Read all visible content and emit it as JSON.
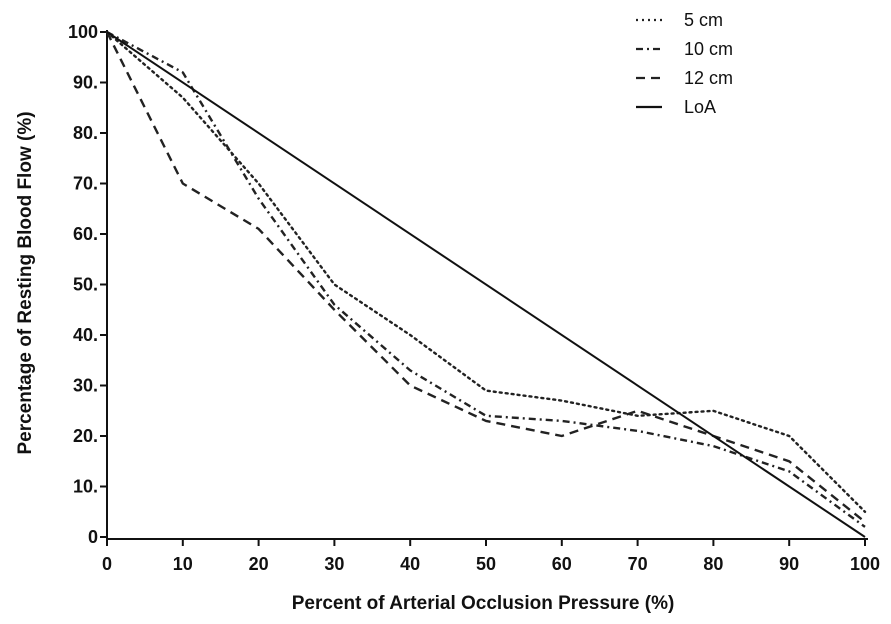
{
  "chart_data": {
    "type": "line",
    "xlabel": "Percent of Arterial  Occlusion Pressure (%)",
    "ylabel": "Percentage of  Resting  Blood Flow (%)",
    "xlim": [
      0,
      100
    ],
    "ylim": [
      0,
      100
    ],
    "x_ticks": [
      "0",
      "10",
      "20",
      "30",
      "40",
      "50",
      "60",
      "70",
      "80",
      "90",
      "100"
    ],
    "y_ticks": [
      "0",
      "10.",
      "20.",
      "30.",
      "40.",
      "50.",
      "60.",
      "70.",
      "80.",
      "90.",
      "100"
    ],
    "grid": false,
    "legend_position": "top-right",
    "series": [
      {
        "name": "5 cm",
        "style": "dotted",
        "color": "#222222",
        "x": [
          0,
          10,
          20,
          30,
          40,
          50,
          60,
          70,
          80,
          90,
          100
        ],
        "y": [
          100,
          87,
          70,
          50,
          40,
          29,
          27,
          24,
          25,
          20,
          5
        ]
      },
      {
        "name": "10 cm",
        "style": "dash-dot",
        "color": "#222222",
        "x": [
          0,
          10,
          20,
          30,
          40,
          50,
          60,
          70,
          80,
          90,
          100
        ],
        "y": [
          100,
          92,
          67,
          46,
          33,
          24,
          23,
          21,
          18,
          13,
          2
        ]
      },
      {
        "name": "12 cm",
        "style": "dashed",
        "color": "#222222",
        "x": [
          0,
          10,
          20,
          30,
          40,
          50,
          60,
          70,
          80,
          90,
          100
        ],
        "y": [
          100,
          70,
          61,
          45,
          30,
          23,
          20,
          25,
          20,
          15,
          3
        ]
      },
      {
        "name": "LoA",
        "style": "solid",
        "color": "#111111",
        "x": [
          0,
          100
        ],
        "y": [
          100,
          0
        ]
      }
    ]
  }
}
